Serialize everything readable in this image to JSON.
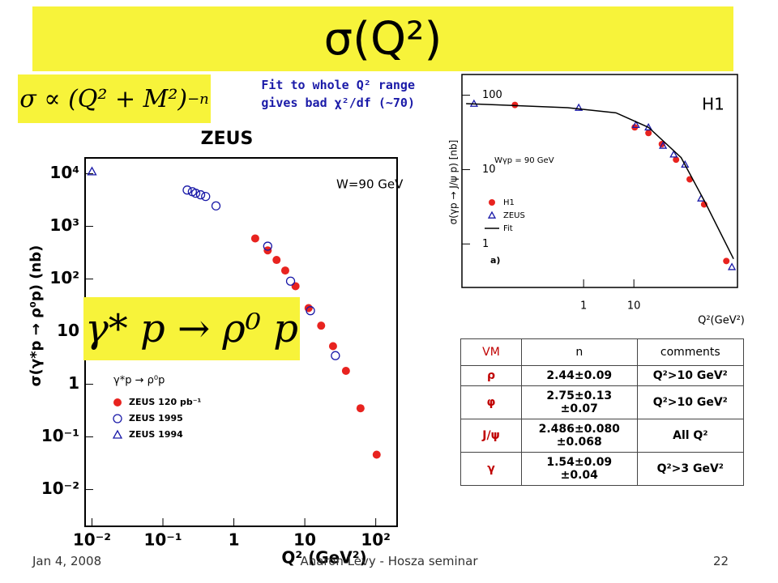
{
  "header": {
    "title": "σ(Q²)"
  },
  "formula": {
    "base": "σ ∝ (Q² + M²)",
    "exponent": "−n"
  },
  "annotation": [
    "Fit to whole Q² range",
    "gives bad χ²/df (~70)"
  ],
  "process": "γ* p → ρ⁰ p",
  "chart_data": [
    {
      "type": "scatter",
      "title": "ZEUS",
      "subtitle": "W=90 GeV",
      "x_label": "Q² (GeV²)",
      "y_label": "σ(γ*p → ρ⁰p) (nb)",
      "legend_title": "γ*p → ρ⁰p",
      "x_scale": "log",
      "y_scale": "log",
      "xlim": [
        0.008,
        200
      ],
      "ylim": [
        0.002,
        20000
      ],
      "xticks": [
        {
          "value": 0.01,
          "label": "10⁻²"
        },
        {
          "value": 0.1,
          "label": "10⁻¹"
        },
        1,
        10,
        {
          "value": 100,
          "label": "10²"
        }
      ],
      "yticks": [
        {
          "value": 0.01,
          "label": "10⁻²"
        },
        {
          "value": 0.1,
          "label": "10⁻¹"
        },
        1,
        10,
        {
          "value": 100,
          "label": "10²"
        },
        {
          "value": 1000,
          "label": "10³"
        },
        {
          "value": 10000,
          "label": "10⁴"
        }
      ],
      "series": [
        {
          "name": "ZEUS 120 pb⁻¹",
          "marker": "circle-filled",
          "color": "#e8231f",
          "x": [
            2.0,
            3.0,
            4.0,
            5.3,
            7.4,
            11.3,
            17,
            25,
            38,
            61,
            103
          ],
          "values": [
            590,
            350,
            230,
            145,
            73,
            28,
            13,
            5.3,
            1.8,
            0.35,
            0.046
          ]
        },
        {
          "name": "ZEUS 1995",
          "marker": "circle-open",
          "color": "#1a1aa8",
          "x": [
            0.22,
            0.26,
            0.29,
            0.34,
            0.4,
            0.56,
            3.0,
            6.3,
            12,
            27
          ],
          "values": [
            4900,
            4560,
            4260,
            3980,
            3700,
            2450,
            420,
            91,
            25,
            3.5
          ]
        },
        {
          "name": "ZEUS 1994",
          "marker": "triangle-open",
          "color": "#1a1aa8",
          "x": [
            0.01
          ],
          "values": [
            11000
          ]
        }
      ]
    },
    {
      "type": "scatter",
      "title": "H1",
      "subtitle": "Wγp = 90 GeV",
      "panel_label": "a)",
      "x_label": "Q²(GeV²)",
      "y_label": "σ(γp → J/ψ p) [nb]",
      "x_scale": "log",
      "y_scale": "log",
      "xlim": [
        0.0038,
        1150
      ],
      "ylim": [
        0.26,
        190
      ],
      "xticks": [
        1,
        10
      ],
      "yticks": [
        1,
        10,
        100
      ],
      "series": [
        {
          "name": "H1",
          "marker": "circle-filled",
          "color": "#e8231f",
          "x": [
            0.043,
            10.4,
            19.5,
            36,
            69,
            129,
            250,
            690
          ],
          "values": [
            74,
            37,
            31,
            22,
            13.6,
            7.4,
            3.4,
            0.59
          ]
        },
        {
          "name": "ZEUS",
          "marker": "triangle-open",
          "color": "#1a1aa8",
          "x": [
            0.0066,
            0.8,
            11,
            19.5,
            38,
            62,
            104,
            218,
            890
          ],
          "values": [
            77,
            68,
            40,
            37,
            21,
            16,
            11.7,
            4.1,
            0.49
          ]
        },
        {
          "name": "Fit",
          "marker": "line",
          "color": "#000000",
          "x": [
            0.0046,
            0.48,
            4.4,
            19.5,
            87,
            263,
            960
          ],
          "values": [
            77,
            68,
            58,
            37,
            14.5,
            3.6,
            0.63
          ]
        }
      ]
    }
  ],
  "table": {
    "header": [
      "VM",
      "n",
      "comments"
    ],
    "rows": [
      [
        "ρ",
        "2.44±0.09",
        "Q²>10 GeV²"
      ],
      [
        "φ",
        "2.75±0.13\n±0.07",
        "Q²>10 GeV²"
      ],
      [
        "J/ψ",
        "2.486±0.080\n±0.068",
        "All Q²"
      ],
      [
        "γ",
        "1.54±0.09\n±0.04",
        "Q²>3 GeV²"
      ]
    ]
  },
  "footer": {
    "date": "Jan 4, 2008",
    "author": "Aharon Levy - Hosza seminar",
    "page": "22"
  }
}
